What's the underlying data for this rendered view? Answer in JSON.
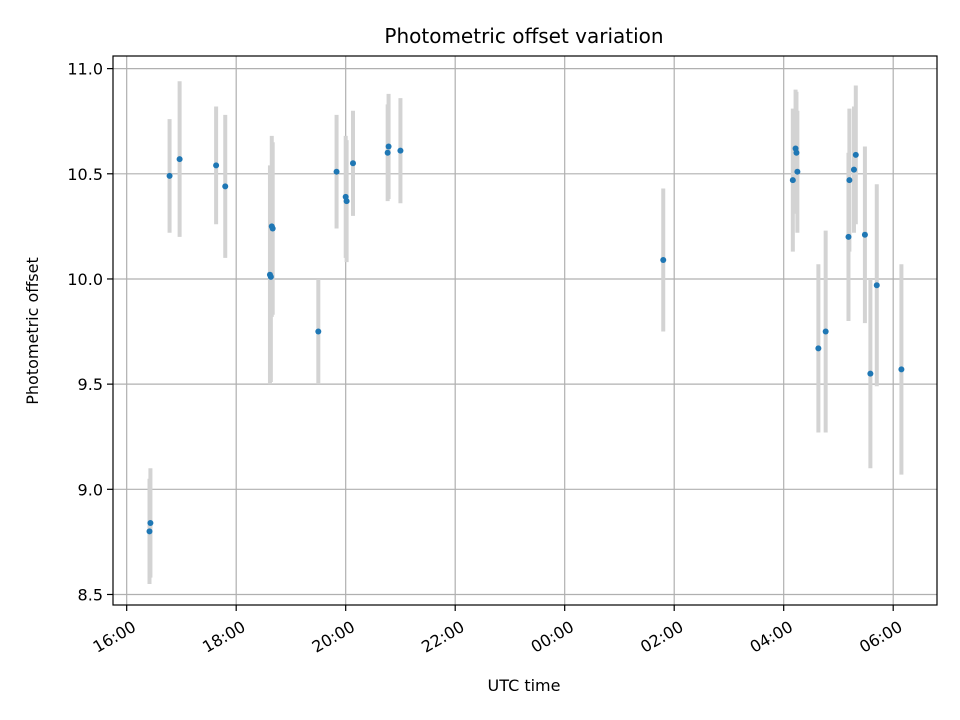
{
  "chart_data": {
    "type": "scatter",
    "title": "Photometric offset variation",
    "xlabel": "UTC time",
    "ylabel": "Photometric offset",
    "x_tick_labels": [
      "16:00",
      "18:00",
      "20:00",
      "22:00",
      "00:00",
      "02:00",
      "04:00",
      "06:00"
    ],
    "x_ticks_hours_since_16": [
      0,
      2,
      4,
      6,
      8,
      10,
      12,
      14
    ],
    "xlim_hours_since_16": [
      -0.25,
      14.8
    ],
    "y_ticks": [
      8.5,
      9.0,
      9.5,
      10.0,
      10.5,
      11.0
    ],
    "ylim": [
      8.45,
      11.06
    ],
    "grid": true,
    "colors": {
      "point": "#1f77b4",
      "errorbar": "#d3d3d3",
      "grid": "#b0b0b0"
    },
    "points": [
      {
        "x": "16:25",
        "y": 8.8,
        "err": 0.25
      },
      {
        "x": "16:26",
        "y": 8.84,
        "err": 0.26
      },
      {
        "x": "16:47",
        "y": 10.49,
        "err": 0.27
      },
      {
        "x": "16:58",
        "y": 10.57,
        "err": 0.37
      },
      {
        "x": "17:38",
        "y": 10.54,
        "err": 0.28
      },
      {
        "x": "17:48",
        "y": 10.44,
        "err": 0.34
      },
      {
        "x": "18:37",
        "y": 10.02,
        "err": 0.52
      },
      {
        "x": "18:38",
        "y": 10.01,
        "err": 0.5
      },
      {
        "x": "18:39",
        "y": 10.25,
        "err": 0.43
      },
      {
        "x": "18:40",
        "y": 10.24,
        "err": 0.41
      },
      {
        "x": "19:30",
        "y": 9.75,
        "err": 0.25
      },
      {
        "x": "19:50",
        "y": 10.51,
        "err": 0.27
      },
      {
        "x": "20:00",
        "y": 10.39,
        "err": 0.29
      },
      {
        "x": "20:01",
        "y": 10.37,
        "err": 0.29
      },
      {
        "x": "20:08",
        "y": 10.55,
        "err": 0.25
      },
      {
        "x": "20:46",
        "y": 10.6,
        "err": 0.23
      },
      {
        "x": "20:47",
        "y": 10.63,
        "err": 0.25
      },
      {
        "x": "21:00",
        "y": 10.61,
        "err": 0.25
      },
      {
        "x": "01:48",
        "y": 10.09,
        "err": 0.34
      },
      {
        "x": "04:10",
        "y": 10.47,
        "err": 0.34
      },
      {
        "x": "04:13",
        "y": 10.62,
        "err": 0.28
      },
      {
        "x": "04:14",
        "y": 10.6,
        "err": 0.29
      },
      {
        "x": "04:15",
        "y": 10.51,
        "err": 0.29
      },
      {
        "x": "04:38",
        "y": 9.67,
        "err": 0.4
      },
      {
        "x": "04:46",
        "y": 9.75,
        "err": 0.48
      },
      {
        "x": "05:11",
        "y": 10.2,
        "err": 0.4
      },
      {
        "x": "05:12",
        "y": 10.47,
        "err": 0.34
      },
      {
        "x": "05:17",
        "y": 10.52,
        "err": 0.3
      },
      {
        "x": "05:19",
        "y": 10.59,
        "err": 0.33
      },
      {
        "x": "05:29",
        "y": 10.21,
        "err": 0.42
      },
      {
        "x": "05:35",
        "y": 9.55,
        "err": 0.45
      },
      {
        "x": "05:42",
        "y": 9.97,
        "err": 0.48
      },
      {
        "x": "06:09",
        "y": 9.57,
        "err": 0.5
      }
    ]
  }
}
